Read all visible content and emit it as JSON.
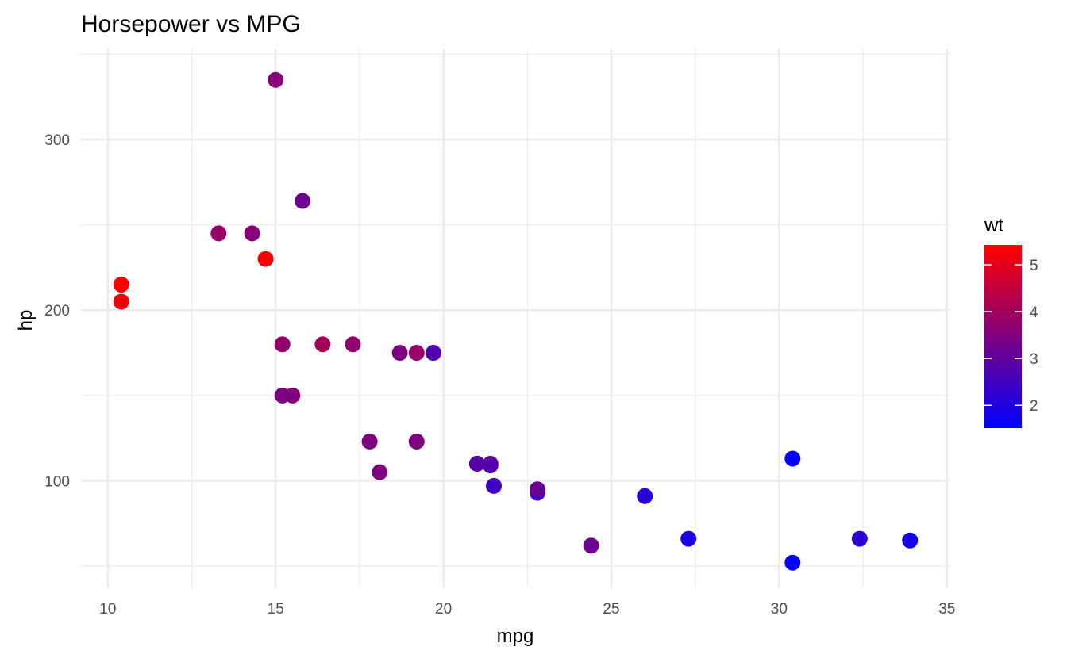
{
  "chart_data": {
    "type": "scatter",
    "title": "Horsepower vs MPG",
    "xlabel": "mpg",
    "ylabel": "hp",
    "xlim": [
      9.2,
      35.1
    ],
    "ylim": [
      37,
      353
    ],
    "x_ticks": [
      10,
      15,
      20,
      25,
      30,
      35
    ],
    "x_minor_ticks": [
      12.5,
      17.5,
      22.5,
      27.5,
      32.5
    ],
    "y_ticks": [
      100,
      200,
      300
    ],
    "y_minor_ticks": [
      50,
      150,
      250,
      350
    ],
    "grid": true,
    "legend": {
      "title": "wt",
      "position": "right",
      "type": "colorbar",
      "range": [
        1.513,
        5.424
      ],
      "ticks": [
        2,
        3,
        4,
        5
      ],
      "low_color": "#0000ff",
      "high_color": "#ff0000"
    },
    "points": [
      {
        "x": 21.0,
        "y": 110,
        "wt": 2.62
      },
      {
        "x": 21.0,
        "y": 110,
        "wt": 2.875
      },
      {
        "x": 22.8,
        "y": 93,
        "wt": 2.32
      },
      {
        "x": 21.4,
        "y": 110,
        "wt": 3.215
      },
      {
        "x": 18.7,
        "y": 175,
        "wt": 3.44
      },
      {
        "x": 18.1,
        "y": 105,
        "wt": 3.46
      },
      {
        "x": 14.3,
        "y": 245,
        "wt": 3.57
      },
      {
        "x": 24.4,
        "y": 62,
        "wt": 3.19
      },
      {
        "x": 22.8,
        "y": 95,
        "wt": 3.15
      },
      {
        "x": 19.2,
        "y": 123,
        "wt": 3.44
      },
      {
        "x": 17.8,
        "y": 123,
        "wt": 3.44
      },
      {
        "x": 16.4,
        "y": 180,
        "wt": 4.07
      },
      {
        "x": 17.3,
        "y": 180,
        "wt": 3.73
      },
      {
        "x": 15.2,
        "y": 180,
        "wt": 3.78
      },
      {
        "x": 10.4,
        "y": 205,
        "wt": 5.25
      },
      {
        "x": 10.4,
        "y": 215,
        "wt": 5.424
      },
      {
        "x": 14.7,
        "y": 230,
        "wt": 5.345
      },
      {
        "x": 32.4,
        "y": 66,
        "wt": 2.2
      },
      {
        "x": 30.4,
        "y": 52,
        "wt": 1.615
      },
      {
        "x": 33.9,
        "y": 65,
        "wt": 1.835
      },
      {
        "x": 21.5,
        "y": 97,
        "wt": 2.465
      },
      {
        "x": 15.5,
        "y": 150,
        "wt": 3.52
      },
      {
        "x": 15.2,
        "y": 150,
        "wt": 3.435
      },
      {
        "x": 13.3,
        "y": 245,
        "wt": 3.84
      },
      {
        "x": 19.2,
        "y": 175,
        "wt": 3.845
      },
      {
        "x": 27.3,
        "y": 66,
        "wt": 1.935
      },
      {
        "x": 26.0,
        "y": 91,
        "wt": 2.14
      },
      {
        "x": 30.4,
        "y": 113,
        "wt": 1.513
      },
      {
        "x": 15.8,
        "y": 264,
        "wt": 3.17
      },
      {
        "x": 19.7,
        "y": 175,
        "wt": 2.77
      },
      {
        "x": 15.0,
        "y": 335,
        "wt": 3.57
      },
      {
        "x": 21.4,
        "y": 109,
        "wt": 2.78
      }
    ]
  }
}
